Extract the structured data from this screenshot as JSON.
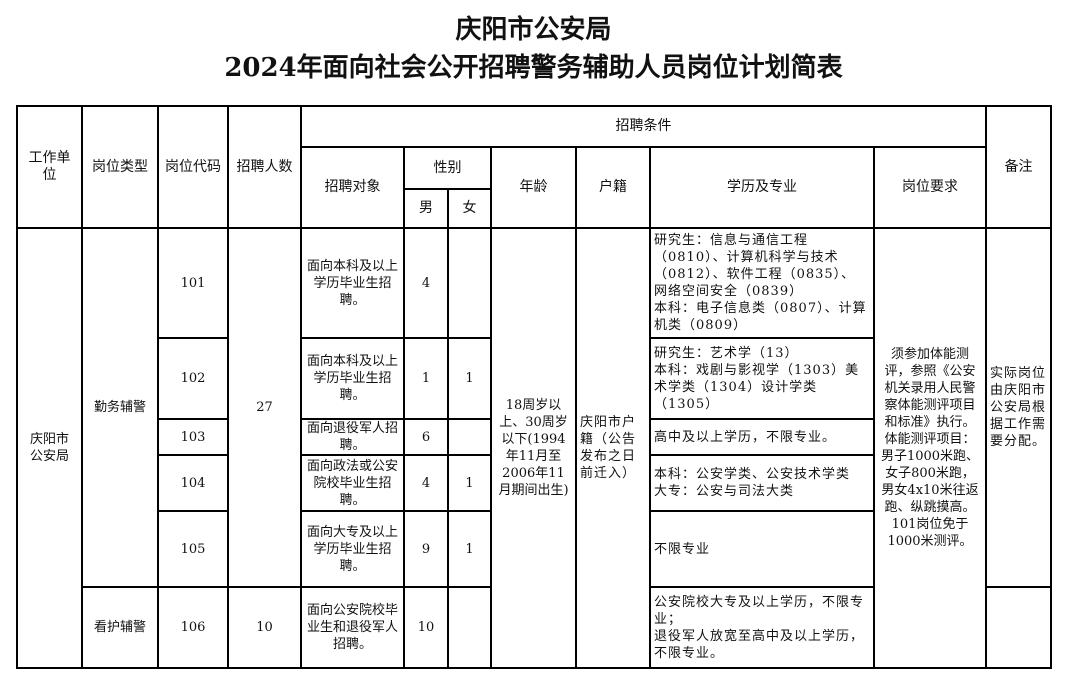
{
  "title": {
    "line1": "庆阳市公安局",
    "line2": "2024年面向社会公开招聘警务辅助人员岗位计划简表"
  },
  "header": {
    "unit": "工作单位",
    "post_type": "岗位类型",
    "post_code": "岗位代码",
    "count": "招聘人数",
    "conditions": "招聘条件",
    "target": "招聘对象",
    "gender": "性别",
    "male": "男",
    "female": "女",
    "age": "年龄",
    "residence": "户籍",
    "education": "学历及专业",
    "requirements": "岗位要求",
    "remarks": "备注"
  },
  "shared": {
    "unit": "庆阳市\n公安局",
    "age": "18周岁以上、30周岁以下(1994年11月至2006年11月期间出生)",
    "residence": "庆阳市户籍（公告发布之日前迁入）",
    "requirements": "须参加体能测评，参照《公安机关录用人民警察体能测评项目和标准》执行。体能测评项目：男子1000米跑、女子800米跑，男女4x10米往返跑、纵跳摸高。101岗位免于1000米测评。",
    "remarks": "实际岗位由庆阳市公安局根据工作需要分配。"
  },
  "groups": [
    {
      "post_type": "勤务辅警",
      "count": "27"
    },
    {
      "post_type": "看护辅警",
      "count": "10"
    }
  ],
  "rows": [
    {
      "code": "101",
      "target": "面向本科及以上学历毕业生招聘。",
      "male": "4",
      "female": "",
      "education": "研究生：信息与通信工程（0810）、计算机科学与技术（0812）、软件工程（0835）、网络空间安全（0839）\n本科：电子信息类（0807）、计算机类（0809）"
    },
    {
      "code": "102",
      "target": "面向本科及以上学历毕业生招聘。",
      "male": "1",
      "female": "1",
      "education": "研究生：艺术学（13）\n本科：戏剧与影视学（1303）美术学类（1304）设计学类（1305）"
    },
    {
      "code": "103",
      "target": "面向退役军人招聘。",
      "male": "6",
      "female": "",
      "education": "高中及以上学历，不限专业。"
    },
    {
      "code": "104",
      "target": "面向政法或公安院校毕业生招聘。",
      "male": "4",
      "female": "1",
      "education": "本科：公安学类、公安技术学类\n大专：公安与司法大类"
    },
    {
      "code": "105",
      "target": "面向大专及以上学历毕业生招聘。",
      "male": "9",
      "female": "1",
      "education": "不限专业"
    },
    {
      "code": "106",
      "target": "面向公安院校毕业生和退役军人招聘。",
      "male": "10",
      "female": "",
      "education": "公安院校大专及以上学历，不限专业；\n退役军人放宽至高中及以上学历，不限专业。"
    }
  ]
}
